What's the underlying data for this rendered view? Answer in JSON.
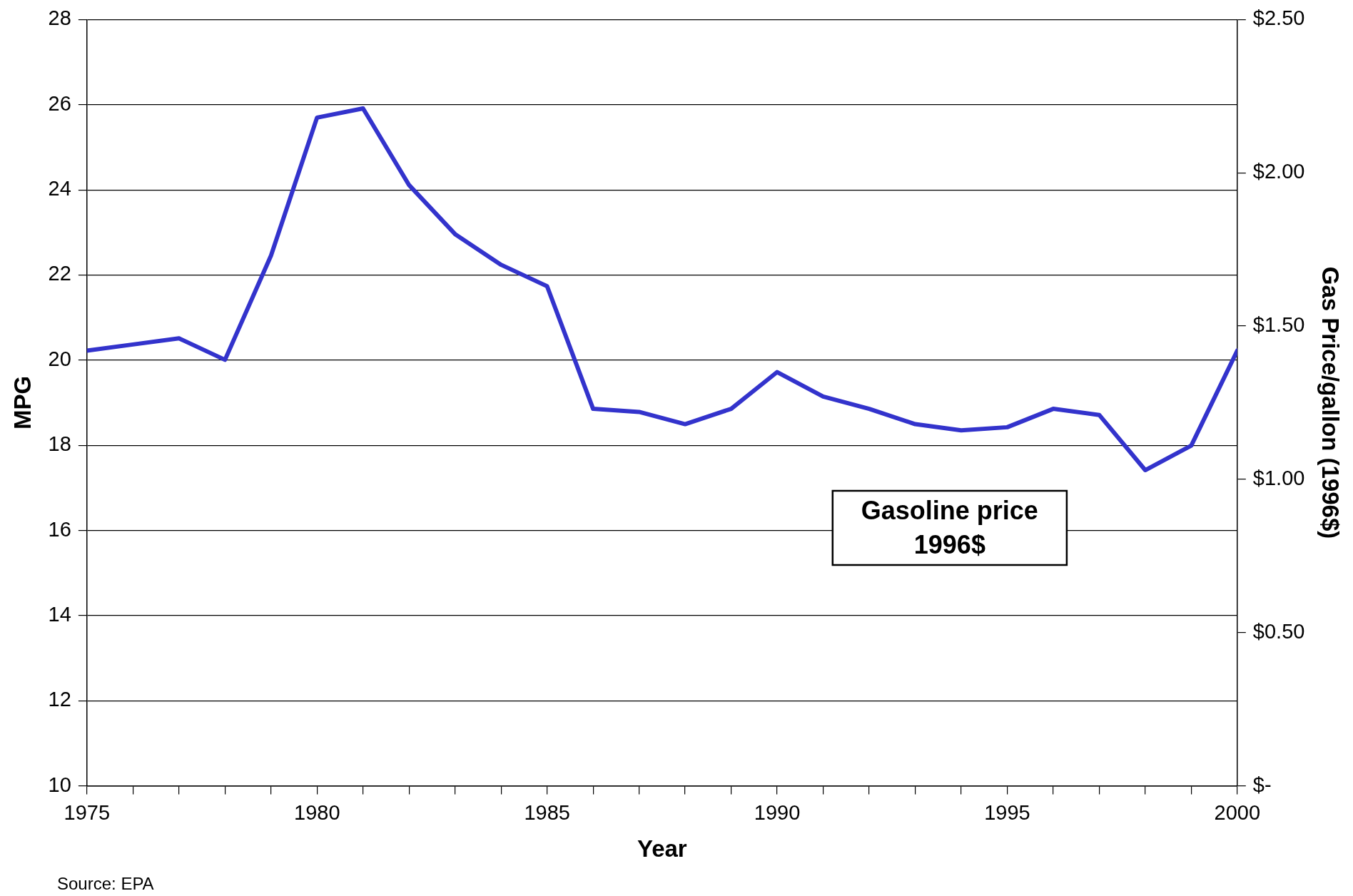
{
  "chart_data": {
    "type": "line",
    "xlabel": "Year",
    "ylabel": "MPG",
    "y2label": "Gas Price/gallon (1996$)",
    "x": [
      1975,
      1976,
      1977,
      1978,
      1979,
      1980,
      1981,
      1982,
      1983,
      1984,
      1985,
      1986,
      1987,
      1988,
      1989,
      1990,
      1991,
      1992,
      1993,
      1994,
      1995,
      1996,
      1997,
      1998,
      1999,
      2000
    ],
    "series": [
      {
        "name": "Gasoline price 1996$",
        "color": "#3333cc",
        "axis": "y2",
        "values": [
          1.42,
          1.44,
          1.46,
          1.39,
          1.73,
          2.18,
          2.21,
          1.96,
          1.8,
          1.7,
          1.63,
          1.23,
          1.22,
          1.18,
          1.23,
          1.35,
          1.27,
          1.23,
          1.18,
          1.16,
          1.17,
          1.23,
          1.21,
          1.03,
          1.11,
          1.42
        ]
      }
    ],
    "xlim": [
      1975,
      2000
    ],
    "xticks": [
      1975,
      {
        "value": 1976,
        "label": null
      },
      {
        "value": 1977,
        "label": null
      },
      {
        "value": 1978,
        "label": null
      },
      {
        "value": 1979,
        "label": null
      },
      1980,
      {
        "value": 1981,
        "label": null
      },
      {
        "value": 1982,
        "label": null
      },
      {
        "value": 1983,
        "label": null
      },
      {
        "value": 1984,
        "label": null
      },
      1985,
      {
        "value": 1986,
        "label": null
      },
      {
        "value": 1987,
        "label": null
      },
      {
        "value": 1988,
        "label": null
      },
      {
        "value": 1989,
        "label": null
      },
      1990,
      {
        "value": 1991,
        "label": null
      },
      {
        "value": 1992,
        "label": null
      },
      {
        "value": 1993,
        "label": null
      },
      {
        "value": 1994,
        "label": null
      },
      1995,
      {
        "value": 1996,
        "label": null
      },
      {
        "value": 1997,
        "label": null
      },
      {
        "value": 1998,
        "label": null
      },
      {
        "value": 1999,
        "label": null
      },
      2000
    ],
    "ylim": [
      10,
      28
    ],
    "yticks": [
      10,
      12,
      14,
      16,
      18,
      20,
      22,
      24,
      26,
      28
    ],
    "y2lim": [
      0,
      2.5
    ],
    "y2ticks": [
      {
        "value": 0,
        "label": "$-"
      },
      {
        "value": 0.5,
        "label": "$0.50"
      },
      {
        "value": 1,
        "label": "$1.00"
      },
      {
        "value": 1.5,
        "label": "$1.50"
      },
      {
        "value": 2,
        "label": "$2.00"
      },
      {
        "value": 2.5,
        "label": "$2.50"
      }
    ],
    "grid": "y",
    "legend": false,
    "marker": "none",
    "line_style": "solid",
    "annotations": [
      "Source: EPA"
    ]
  }
}
